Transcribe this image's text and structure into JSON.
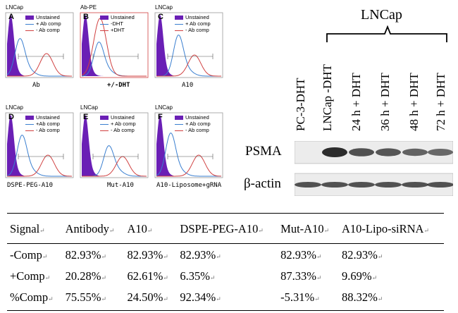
{
  "flow_panels": [
    {
      "letter": "A",
      "cell": "LNCap",
      "xlabel": "Ab",
      "legend": [
        "Unstained",
        "+ Ab comp",
        "- Ab comp"
      ]
    },
    {
      "letter": "B",
      "cell": "Ab-PE",
      "xlabel": "+/-DHT",
      "legend": [
        "Unstained",
        "-DHT",
        "+DHT"
      ]
    },
    {
      "letter": "C",
      "cell": "LNCap",
      "xlabel": "A10",
      "legend": [
        "Unstained",
        "+ Ab comp",
        "- Ab comp"
      ]
    },
    {
      "letter": "D",
      "cell": "LNCap",
      "xlabel": "DSPE-PEG-A10",
      "legend": [
        "Unstained",
        "+Ab comp",
        "- Ab comp"
      ]
    },
    {
      "letter": "E",
      "cell": "LNCap",
      "xlabel": "Mut-A10",
      "legend": [
        "Unstained",
        "+ Ab comp",
        "- Ab comp"
      ]
    },
    {
      "letter": "F",
      "cell": "LNCap",
      "xlabel": "A10-Liposome+gRNA",
      "legend": [
        "Unstained",
        "+ Ab comp",
        "- Ab comp"
      ]
    }
  ],
  "western": {
    "group_label": "LNCap",
    "lanes": [
      "PC-3-DHT",
      "LNCap -DHT",
      "24 h + DHT",
      "36 h + DHT",
      "48 h + DHT",
      "72 h + DHT"
    ],
    "rows": [
      {
        "label": "PSMA",
        "intensity": [
          0.0,
          1.0,
          0.7,
          0.65,
          0.55,
          0.5
        ]
      },
      {
        "label": "β-actin",
        "intensity": [
          0.7,
          0.7,
          0.7,
          0.7,
          0.7,
          0.7
        ]
      }
    ]
  },
  "table": {
    "headers": [
      "Signal",
      "Antibody",
      "A10",
      "DSPE-PEG-A10",
      "Mut-A10",
      "A10-Lipo-siRNA"
    ],
    "rows": [
      [
        "-Comp",
        "82.93%",
        "82.93%",
        "82.93%",
        "82.93%",
        "82.93%"
      ],
      [
        "+Comp",
        "20.28%",
        "62.61%",
        "6.35%",
        "87.33%",
        "9.69%"
      ],
      [
        "%Comp",
        "75.55%",
        "24.50%",
        "92.34%",
        "-5.31%",
        "88.32%"
      ]
    ]
  },
  "colors": {
    "unstained": "#6a1fb5",
    "plus": "#3a7fd0",
    "minus": "#d04040",
    "band": "#222222"
  },
  "paragraph_mark": "↵"
}
